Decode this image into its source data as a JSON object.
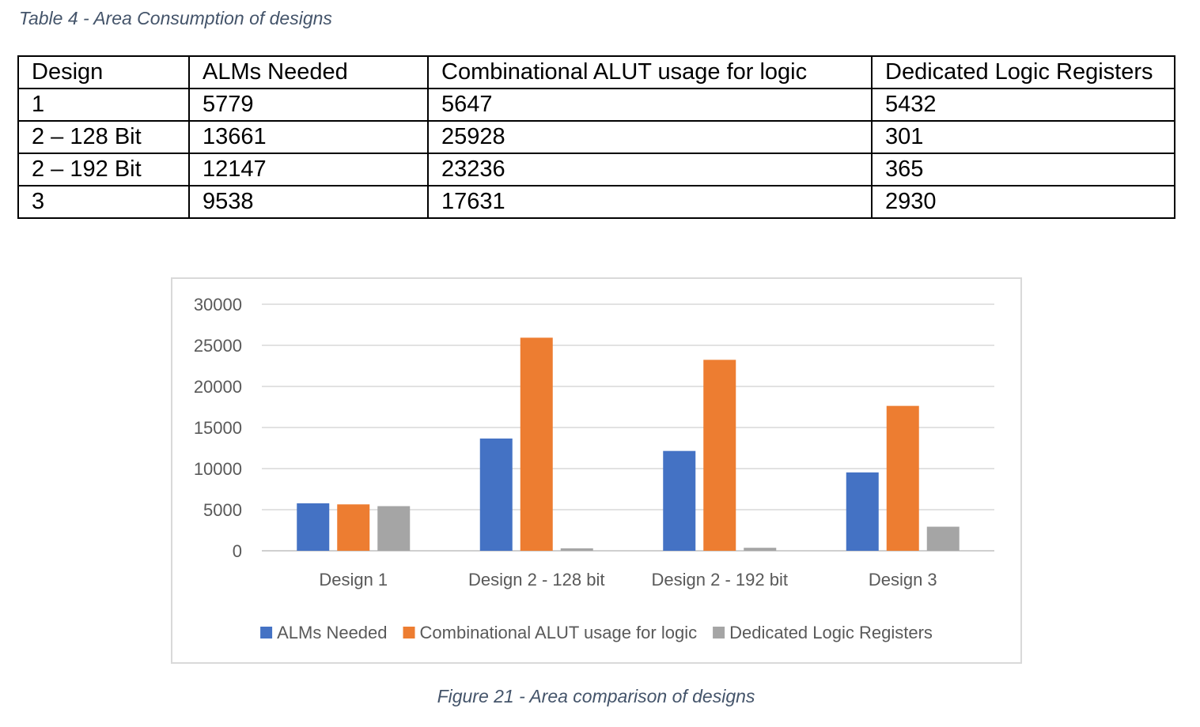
{
  "table": {
    "caption": "Table 4 - Area Consumption of designs",
    "headers": [
      "Design",
      "ALMs Needed",
      "Combinational ALUT usage for logic",
      "Dedicated Logic Registers"
    ],
    "rows": [
      [
        "1",
        "5779",
        "5647",
        "5432"
      ],
      [
        "2 – 128 Bit",
        "13661",
        "25928",
        "301"
      ],
      [
        "2 – 192 Bit",
        "12147",
        "23236",
        "365"
      ],
      [
        "3",
        "9538",
        "17631",
        "2930"
      ]
    ]
  },
  "figure": {
    "caption": "Figure 21 - Area comparison of designs"
  },
  "chart_data": {
    "type": "bar",
    "title": "",
    "xlabel": "",
    "ylabel": "",
    "categories": [
      "Design 1",
      "Design 2 - 128 bit",
      "Design 2 - 192 bit",
      "Design 3"
    ],
    "series": [
      {
        "name": "ALMs Needed",
        "color": "#4472c4",
        "values": [
          5779,
          13661,
          12147,
          9538
        ]
      },
      {
        "name": "Combinational ALUT usage for logic",
        "color": "#ed7d31",
        "values": [
          5647,
          25928,
          23236,
          17631
        ]
      },
      {
        "name": "Dedicated Logic Registers",
        "color": "#a5a5a5",
        "values": [
          5432,
          301,
          365,
          2930
        ]
      }
    ],
    "ylim": [
      0,
      30000
    ],
    "yticks": [
      0,
      5000,
      10000,
      15000,
      20000,
      25000,
      30000
    ],
    "ytick_labels": [
      "0",
      "5000",
      "10000",
      "15000",
      "20000",
      "25000",
      "30000"
    ],
    "grid": true,
    "legend_position": "bottom"
  }
}
